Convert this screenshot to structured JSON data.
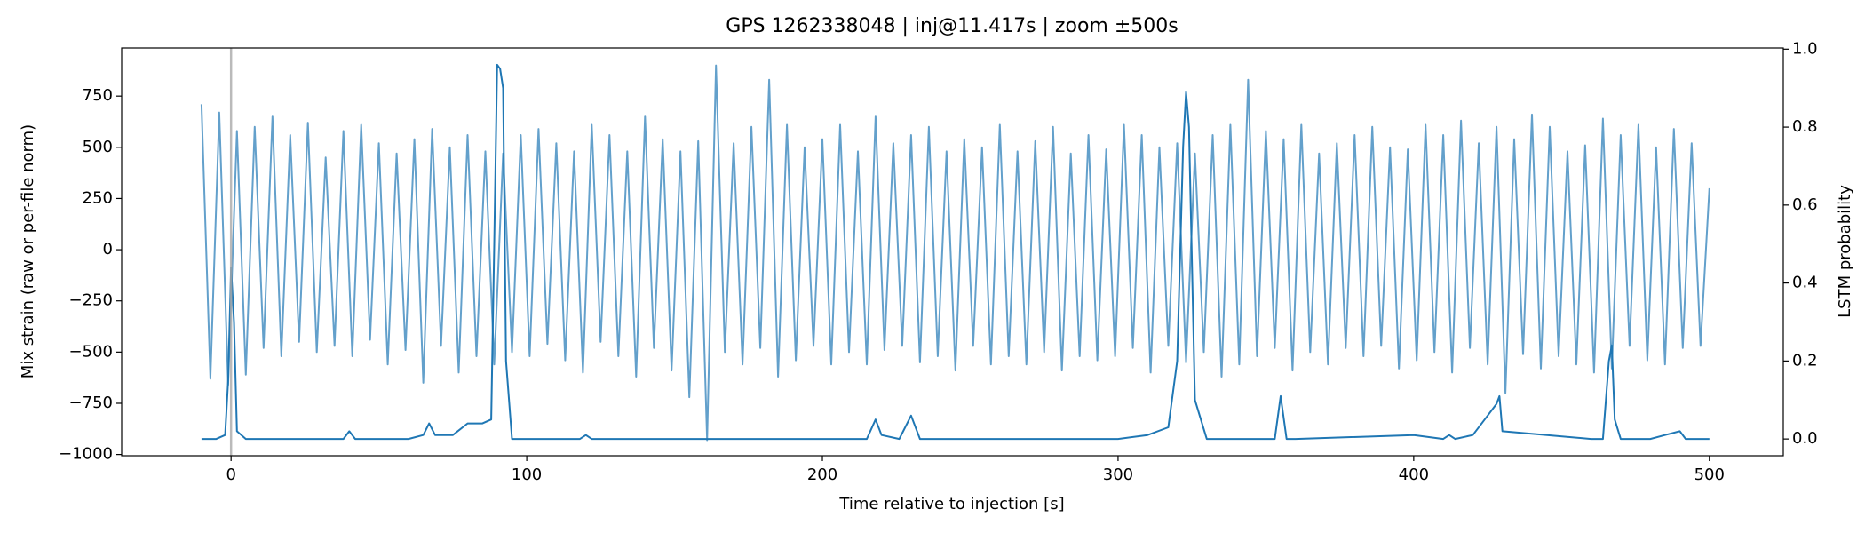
{
  "chart_data": {
    "type": "line",
    "title": "GPS 1262338048 | inj@11.417s | zoom ±500s",
    "xlabel": "Time relative to injection [s]",
    "ylabel": "Mix strain (raw or per-file norm)",
    "y2label": "LSTM probability",
    "xlim": [
      -37,
      525
    ],
    "ylim": [
      -1006,
      985
    ],
    "y2lim": [
      -0.043,
      1.003
    ],
    "xticks": [
      0,
      100,
      200,
      300,
      400,
      500
    ],
    "yticks": [
      {
        "value": -1000,
        "label": "−1000"
      },
      {
        "value": -750,
        "label": "−750"
      },
      {
        "value": -500,
        "label": "−500"
      },
      {
        "value": -250,
        "label": "−250"
      },
      0,
      250,
      500,
      750
    ],
    "y2ticks": [
      {
        "value": 0,
        "label": "0.0"
      },
      0.2,
      0.4,
      0.6,
      0.8,
      {
        "value": 1,
        "label": "1.0"
      }
    ],
    "vlines": [
      0
    ],
    "vline_color": "#aaaaaa",
    "series": [
      {
        "color": "#63a0cb",
        "axis": "y",
        "x": [
          -10,
          -7,
          -4,
          -1,
          2,
          5,
          8,
          11,
          14,
          17,
          20,
          23,
          26,
          29,
          32,
          35,
          38,
          41,
          44,
          47,
          50,
          53,
          56,
          59,
          62,
          65,
          68,
          71,
          74,
          77,
          80,
          83,
          86,
          89,
          92,
          95,
          98,
          101,
          104,
          107,
          110,
          113,
          116,
          119,
          122,
          125,
          128,
          131,
          134,
          137,
          140,
          143,
          146,
          149,
          152,
          155,
          158,
          161,
          164,
          167,
          170,
          173,
          176,
          179,
          182,
          185,
          188,
          191,
          194,
          197,
          200,
          203,
          206,
          209,
          212,
          215,
          218,
          221,
          224,
          227,
          230,
          233,
          236,
          239,
          242,
          245,
          248,
          251,
          254,
          257,
          260,
          263,
          266,
          269,
          272,
          275,
          278,
          281,
          284,
          287,
          290,
          293,
          296,
          299,
          302,
          305,
          308,
          311,
          314,
          317,
          320,
          323,
          326,
          329,
          332,
          335,
          338,
          341,
          344,
          347,
          350,
          353,
          356,
          359,
          362,
          365,
          368,
          371,
          374,
          377,
          380,
          383,
          386,
          389,
          392,
          395,
          398,
          401,
          404,
          407,
          410,
          413,
          416,
          419,
          422,
          425,
          428,
          431,
          434,
          437,
          440,
          443,
          446,
          449,
          452,
          455,
          458,
          461,
          464,
          467,
          470,
          473,
          476,
          479,
          482,
          485,
          488,
          491,
          494,
          497,
          500
        ],
        "values": [
          710,
          -630,
          670,
          -660,
          580,
          -610,
          600,
          -480,
          650,
          -520,
          560,
          -450,
          620,
          -500,
          450,
          -470,
          580,
          -520,
          610,
          -440,
          520,
          -560,
          470,
          -490,
          540,
          -650,
          590,
          -470,
          500,
          -600,
          560,
          -520,
          480,
          -560,
          470,
          -500,
          560,
          -520,
          590,
          -460,
          520,
          -540,
          480,
          -600,
          610,
          -450,
          560,
          -520,
          480,
          -620,
          650,
          -480,
          540,
          -590,
          480,
          -720,
          530,
          -930,
          900,
          -500,
          520,
          -560,
          600,
          -480,
          830,
          -620,
          610,
          -540,
          500,
          -470,
          540,
          -560,
          610,
          -500,
          480,
          -560,
          650,
          -490,
          520,
          -470,
          560,
          -550,
          600,
          -520,
          480,
          -590,
          540,
          -470,
          500,
          -560,
          610,
          -520,
          480,
          -560,
          530,
          -500,
          600,
          -590,
          470,
          -520,
          560,
          -540,
          490,
          -520,
          610,
          -480,
          560,
          -600,
          500,
          -470,
          520,
          -550,
          470,
          -500,
          560,
          -620,
          610,
          -560,
          830,
          -520,
          580,
          -480,
          540,
          -590,
          610,
          -500,
          470,
          -560,
          520,
          -480,
          560,
          -520,
          600,
          -470,
          500,
          -580,
          490,
          -540,
          610,
          -500,
          560,
          -600,
          630,
          -480,
          520,
          -560,
          600,
          -700,
          540,
          -510,
          660,
          -580,
          600,
          -520,
          480,
          -560,
          510,
          -600,
          640,
          -580,
          560,
          -470,
          610,
          -540,
          500,
          -560,
          590,
          -480,
          520,
          -470,
          300
        ]
      },
      {
        "color": "#1f77b4",
        "axis": "y2",
        "x": [
          -10,
          -5,
          -2,
          -1,
          0,
          1,
          2,
          5,
          38,
          40,
          42,
          60,
          65,
          67,
          69,
          75,
          80,
          85,
          88,
          89,
          90,
          91,
          92,
          93,
          95,
          100,
          118,
          120,
          122,
          200,
          215,
          218,
          220,
          226,
          230,
          233,
          240,
          300,
          310,
          317,
          320,
          322,
          323,
          324,
          326,
          330,
          350,
          353,
          355,
          357,
          360,
          400,
          410,
          412,
          414,
          420,
          425,
          428,
          429,
          430,
          460,
          464,
          466,
          467,
          468,
          470,
          480,
          485,
          490,
          492,
          500
        ],
        "values": [
          0,
          0,
          0.01,
          0.15,
          0.44,
          0.3,
          0.02,
          0,
          0,
          0.02,
          0,
          0,
          0.01,
          0.04,
          0.01,
          0.01,
          0.04,
          0.04,
          0.05,
          0.5,
          0.96,
          0.95,
          0.9,
          0.2,
          0,
          0,
          0,
          0.01,
          0,
          0,
          0,
          0.05,
          0.01,
          0,
          0.06,
          0,
          0,
          0,
          0.01,
          0.03,
          0.2,
          0.75,
          0.89,
          0.8,
          0.1,
          0,
          0,
          0,
          0.11,
          0,
          0,
          0.01,
          0,
          0.01,
          0,
          0.01,
          0.06,
          0.09,
          0.11,
          0.02,
          0,
          0,
          0.2,
          0.24,
          0.05,
          0,
          0,
          0.01,
          0.02,
          0,
          0
        ]
      }
    ]
  }
}
